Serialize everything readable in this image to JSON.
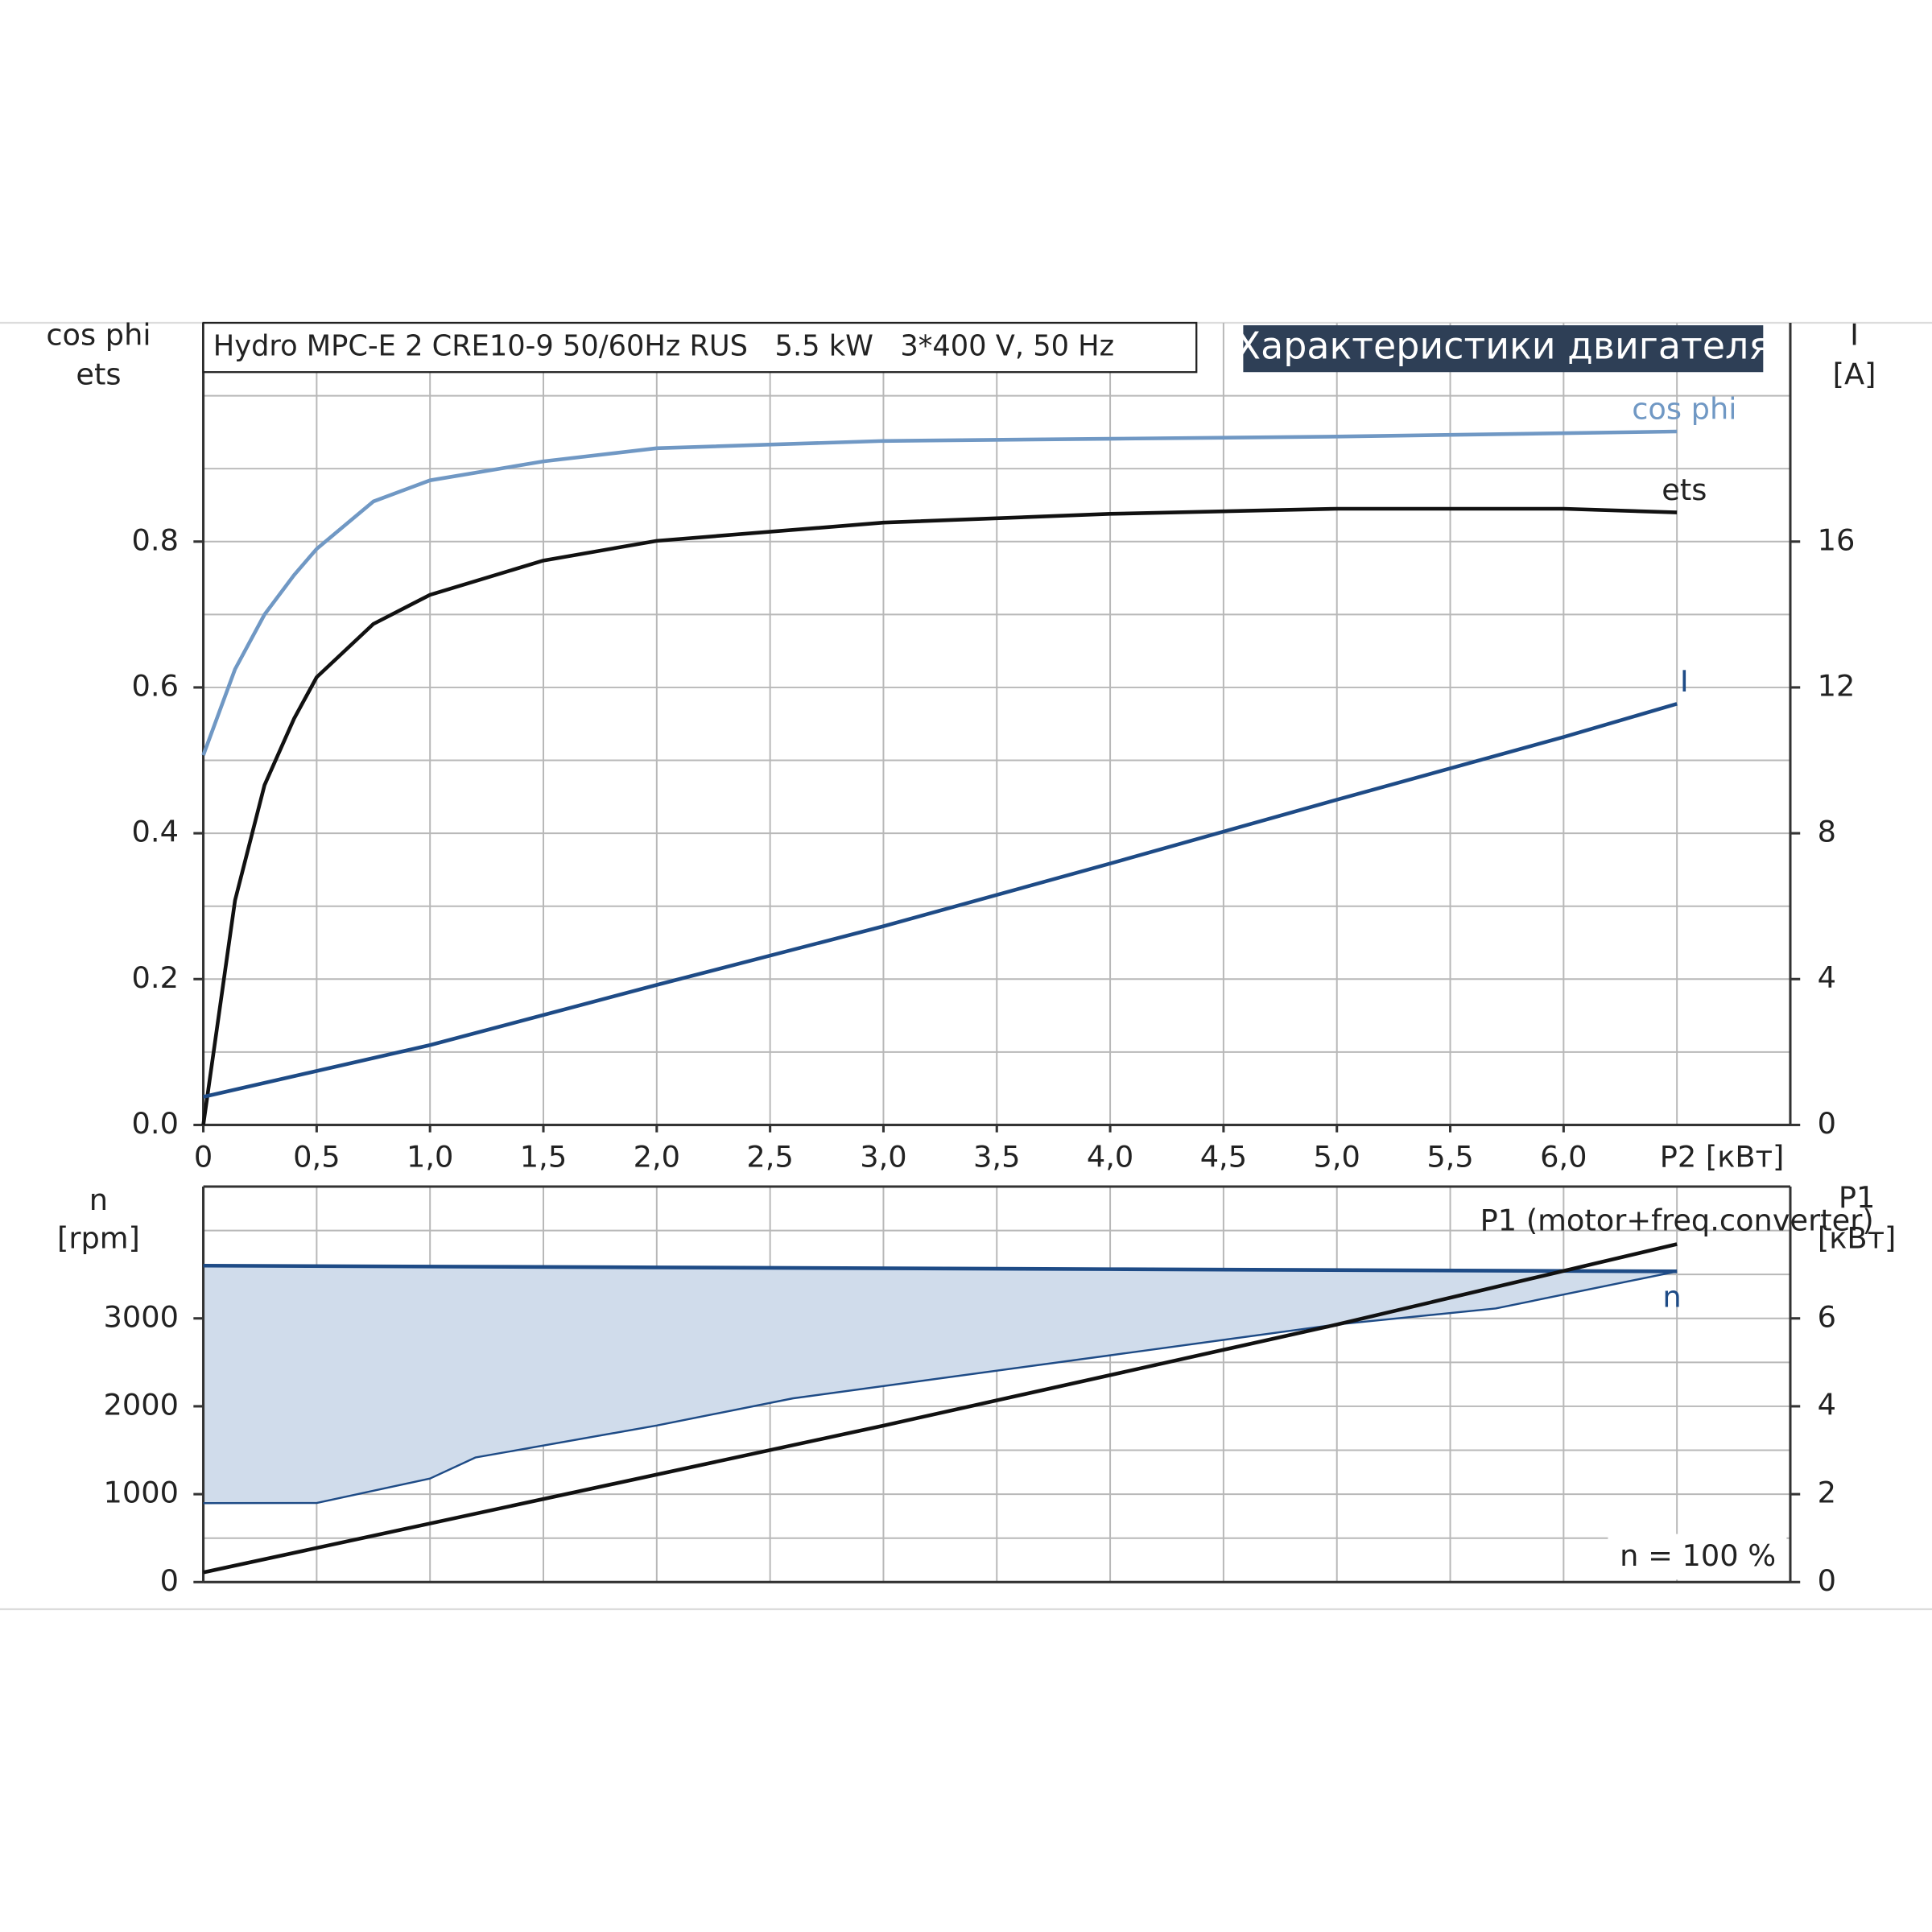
{
  "chart_data": [
    {
      "type": "line",
      "title": "Hydro MPC-E 2 CRE10-9 50/60Hz RUS   5.5 kW   3*400 V, 50 Hz",
      "banner": "Характеристики двигателя",
      "y_label": [
        "cos phi",
        "ets"
      ],
      "y2_label": [
        "I",
        "[A]"
      ],
      "x_label": "P2 [кВт]",
      "xlim": [
        0,
        7
      ],
      "xticks": [
        0,
        {
          "value": 0.5,
          "label": "0,5"
        },
        {
          "value": 1,
          "label": "1,0"
        },
        {
          "value": 1.5,
          "label": "1,5"
        },
        {
          "value": 2,
          "label": "2,0"
        },
        {
          "value": 2.5,
          "label": "2,5"
        },
        {
          "value": 3,
          "label": "3,0"
        },
        {
          "value": 3.5,
          "label": "3,5"
        },
        {
          "value": 4,
          "label": "4,0"
        },
        {
          "value": 4.5,
          "label": "4,5"
        },
        {
          "value": 5,
          "label": "5,0"
        },
        {
          "value": 5.5,
          "label": "5,5"
        },
        {
          "value": 6,
          "label": "6,0"
        }
      ],
      "xgrid": [
        0.5,
        1,
        1.5,
        2,
        2.5,
        3,
        3.5,
        4,
        4.5,
        5,
        5.5,
        6,
        6.5
      ],
      "ylim": [
        0,
        1.1
      ],
      "yticks": [
        {
          "value": 0,
          "label": "0.0"
        },
        0.2,
        0.4,
        0.6,
        0.8
      ],
      "ygrid": [
        0.1,
        0.2,
        0.3,
        0.4,
        0.5,
        0.6,
        0.7,
        0.8,
        0.9,
        1.0
      ],
      "y2lim": [
        0,
        22
      ],
      "y2ticks": [
        0,
        4,
        8,
        12,
        16
      ],
      "series": [
        {
          "name": "cos phi",
          "color": "#7098c4",
          "x": [
            0,
            0.14,
            0.27,
            0.4,
            0.5,
            0.75,
            1,
            1.5,
            2,
            3,
            4,
            5,
            6.5
          ],
          "values": [
            0.507,
            0.625,
            0.7,
            0.754,
            0.79,
            0.855,
            0.884,
            0.91,
            0.928,
            0.938,
            0.941,
            0.944,
            0.951
          ]
        },
        {
          "name": "ets",
          "color": "#111111",
          "x": [
            0,
            0.14,
            0.27,
            0.4,
            0.5,
            0.75,
            1,
            1.5,
            2,
            3,
            4,
            5,
            6,
            6.5
          ],
          "values": [
            0,
            0.308,
            0.466,
            0.557,
            0.614,
            0.687,
            0.727,
            0.774,
            0.801,
            0.826,
            0.838,
            0.845,
            0.845,
            0.84
          ]
        },
        {
          "name": "I",
          "color": "#1e4b86",
          "axis": "y2",
          "x": [
            0,
            1,
            2,
            3,
            4,
            5,
            6,
            6.5
          ],
          "values": [
            0.77,
            2.19,
            3.84,
            5.45,
            7.17,
            8.92,
            10.64,
            11.55
          ]
        }
      ]
    },
    {
      "type": "line",
      "y_label": [
        "n",
        "[rpm]"
      ],
      "y2_label": [
        "P1",
        "[кВт]"
      ],
      "annotation": "n = 100 %",
      "xlim": [
        0,
        7
      ],
      "xgrid": [
        0.5,
        1,
        1.5,
        2,
        2.5,
        3,
        3.5,
        4,
        4.5,
        5,
        5.5,
        6,
        6.5
      ],
      "ylim": [
        0,
        4500
      ],
      "yticks": [
        0,
        1000,
        2000,
        3000
      ],
      "ygrid": [
        500,
        1000,
        1500,
        2000,
        2500,
        3000,
        3500,
        4000
      ],
      "y2lim": [
        0,
        9
      ],
      "y2ticks": [
        0,
        2,
        4,
        6
      ],
      "fill_color": "#d0dceb",
      "series": [
        {
          "name": "n",
          "color": "#1e4b86",
          "x": [
            0,
            2,
            4,
            6.5
          ],
          "values": [
            3600,
            3580,
            3560,
            3535
          ]
        },
        {
          "color": "#1e4b86",
          "x": [
            0,
            0.5,
            1,
            1.2,
            2,
            2.6,
            4,
            5,
            5.7,
            6.5
          ],
          "values": [
            898,
            900,
            1178,
            1417,
            1781,
            2090,
            2580,
            2931,
            3113,
            3534
          ]
        },
        {
          "name": "P1 (motor+freq.converter)",
          "color": "#111111",
          "axis": "y2",
          "x": [
            0,
            3,
            5,
            6.5
          ],
          "values": [
            0.22,
            3.56,
            5.86,
            7.69
          ]
        }
      ]
    }
  ]
}
